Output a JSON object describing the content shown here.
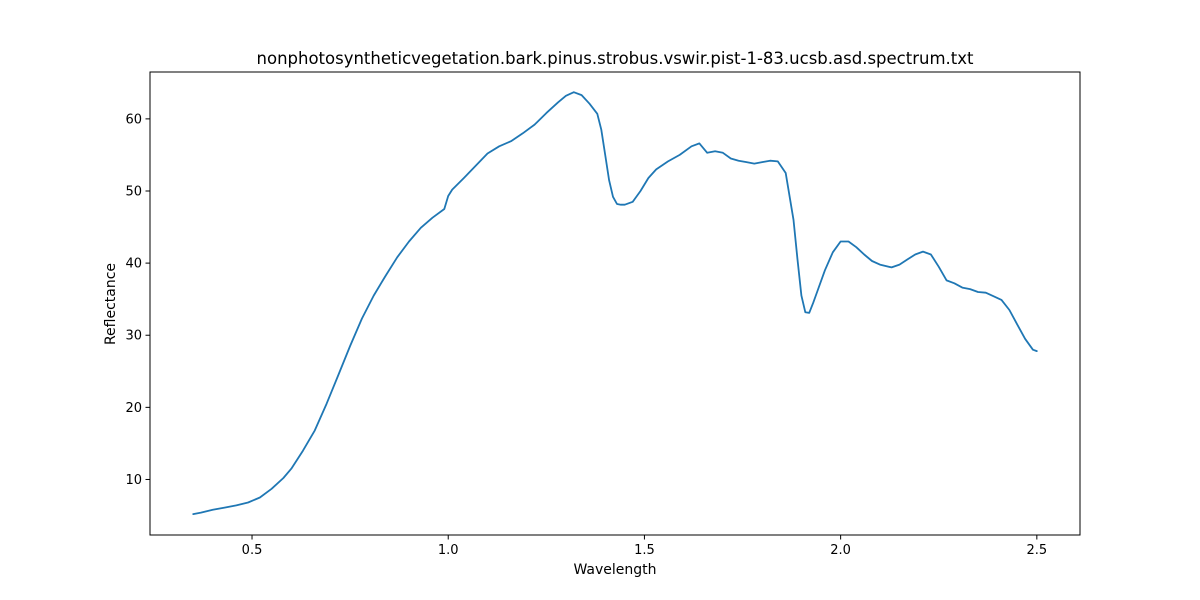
{
  "chart_data": {
    "type": "line",
    "title": "nonphotosyntheticvegetation.bark.pinus.strobus.vswir.pist-1-83.ucsb.asd.spectrum.txt",
    "xlabel": "Wavelength",
    "ylabel": "Reflectance",
    "xlim": [
      0.24,
      2.61
    ],
    "ylim": [
      2.3,
      66.5
    ],
    "xticks": [
      0.5,
      1.0,
      1.5,
      2.0,
      2.5
    ],
    "xtick_labels": [
      "0.5",
      "1.0",
      "1.5",
      "2.0",
      "2.5"
    ],
    "yticks": [
      10,
      20,
      30,
      40,
      50,
      60
    ],
    "ytick_labels": [
      "10",
      "20",
      "30",
      "40",
      "50",
      "60"
    ],
    "grid": false,
    "legend": "none",
    "series": [
      {
        "color": "#1f77b4",
        "x": [
          0.35,
          0.37,
          0.4,
          0.43,
          0.46,
          0.49,
          0.52,
          0.55,
          0.58,
          0.6,
          0.63,
          0.66,
          0.69,
          0.72,
          0.75,
          0.78,
          0.81,
          0.84,
          0.87,
          0.9,
          0.93,
          0.96,
          0.99,
          1.0,
          1.01,
          1.04,
          1.07,
          1.1,
          1.13,
          1.16,
          1.19,
          1.22,
          1.25,
          1.28,
          1.3,
          1.32,
          1.34,
          1.36,
          1.38,
          1.39,
          1.4,
          1.41,
          1.42,
          1.43,
          1.44,
          1.45,
          1.47,
          1.49,
          1.51,
          1.53,
          1.56,
          1.59,
          1.62,
          1.64,
          1.66,
          1.68,
          1.7,
          1.72,
          1.74,
          1.76,
          1.78,
          1.8,
          1.82,
          1.84,
          1.86,
          1.88,
          1.89,
          1.9,
          1.91,
          1.92,
          1.93,
          1.94,
          1.96,
          1.98,
          2.0,
          2.02,
          2.04,
          2.06,
          2.08,
          2.1,
          2.13,
          2.15,
          2.17,
          2.19,
          2.21,
          2.23,
          2.25,
          2.27,
          2.29,
          2.31,
          2.33,
          2.35,
          2.37,
          2.39,
          2.41,
          2.43,
          2.45,
          2.47,
          2.49,
          2.5
        ],
        "y": [
          5.2,
          5.4,
          5.8,
          6.1,
          6.4,
          6.8,
          7.5,
          8.7,
          10.2,
          11.5,
          14.0,
          16.8,
          20.5,
          24.5,
          28.5,
          32.3,
          35.5,
          38.2,
          40.8,
          43.0,
          44.9,
          46.3,
          47.5,
          49.3,
          50.2,
          51.8,
          53.5,
          55.2,
          56.2,
          56.9,
          58.0,
          59.2,
          60.8,
          62.3,
          63.2,
          63.7,
          63.3,
          62.1,
          60.7,
          58.5,
          55.0,
          51.5,
          49.2,
          48.2,
          48.1,
          48.1,
          48.5,
          50.0,
          51.8,
          53.0,
          54.1,
          55.0,
          56.2,
          56.6,
          55.3,
          55.5,
          55.3,
          54.5,
          54.2,
          54.0,
          53.8,
          54.0,
          54.2,
          54.1,
          52.5,
          46.0,
          40.5,
          35.5,
          33.2,
          33.1,
          34.5,
          36.0,
          39.0,
          41.5,
          43.0,
          43.0,
          42.2,
          41.2,
          40.3,
          39.8,
          39.4,
          39.8,
          40.5,
          41.2,
          41.6,
          41.2,
          39.5,
          37.6,
          37.2,
          36.6,
          36.4,
          36.0,
          35.9,
          35.4,
          34.9,
          33.5,
          31.5,
          29.5,
          28.0,
          27.8
        ]
      }
    ]
  }
}
